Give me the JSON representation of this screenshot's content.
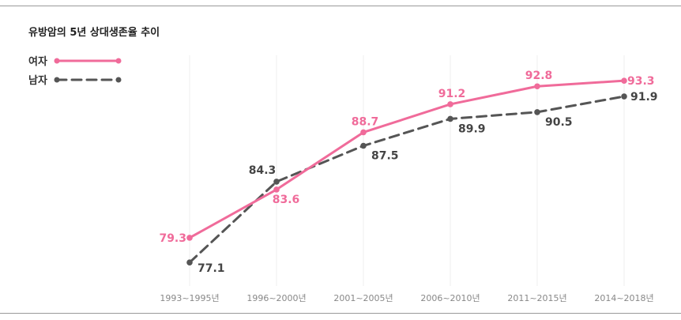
{
  "chart_data": {
    "type": "line",
    "title": "유방암의 5년 상대생존율 추이",
    "categories": [
      "1993~1995년",
      "1996~2000년",
      "2001~2005년",
      "2006~2010년",
      "2011~2015년",
      "2014~2018년"
    ],
    "series": [
      {
        "name": "여자",
        "values": [
          79.3,
          83.6,
          88.7,
          91.2,
          92.8,
          93.3
        ],
        "color": "#f06b9a",
        "dash": "solid"
      },
      {
        "name": "남자",
        "values": [
          77.1,
          84.3,
          87.5,
          89.9,
          90.5,
          91.9
        ],
        "color": "#555555",
        "dash": "dashed"
      }
    ],
    "ylim": [
      72,
      96
    ],
    "grid": false,
    "legend_position": "top-left",
    "label_colors": {
      "female": "#f06b9a",
      "male": "#444444",
      "tick": "#888888"
    }
  }
}
